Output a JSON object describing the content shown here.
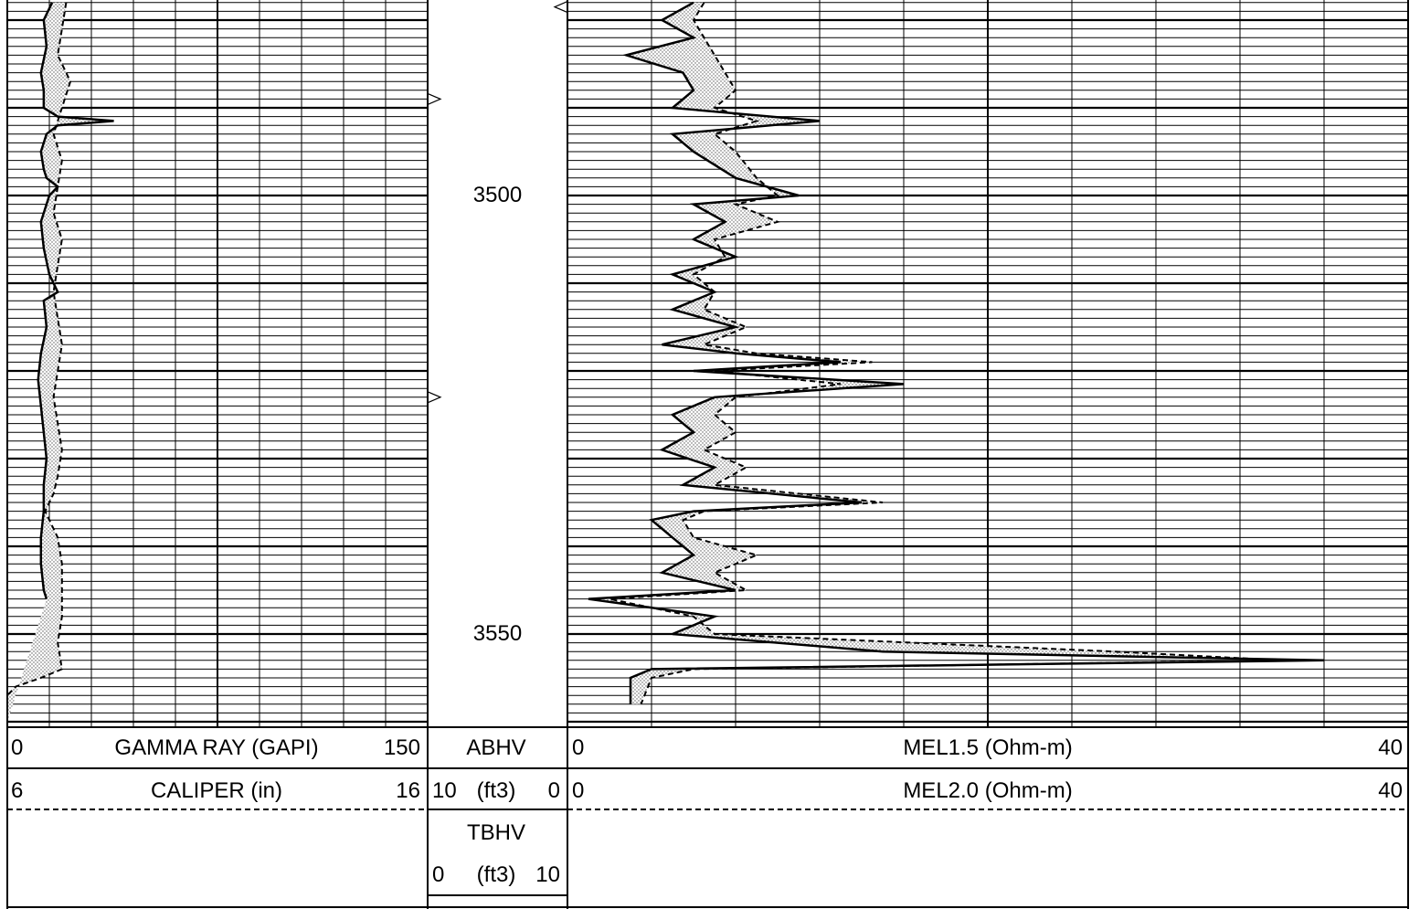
{
  "chart_data": {
    "type": "line",
    "title": "",
    "depth_axis": {
      "range": [
        3478,
        3562
      ],
      "labels": [
        "3500",
        "3550"
      ],
      "label_values": [
        3500,
        3550
      ]
    },
    "tracks": [
      {
        "name": "track1",
        "curves": [
          {
            "name": "GAMMA RAY",
            "unit": "(GAPI)",
            "min": "0",
            "max": "150",
            "min_value": 0,
            "max_value": 150,
            "style": "solid",
            "points": [
              [
                3478,
                16
              ],
              [
                3480,
                13
              ],
              [
                3483,
                14
              ],
              [
                3486,
                12
              ],
              [
                3488,
                13
              ],
              [
                3490,
                13
              ],
              [
                3491,
                18
              ],
              [
                3491.5,
                38
              ],
              [
                3492,
                18
              ],
              [
                3493,
                14
              ],
              [
                3495,
                12
              ],
              [
                3497,
                13
              ],
              [
                3498,
                14
              ],
              [
                3499,
                18
              ],
              [
                3500,
                15
              ],
              [
                3503,
                12
              ],
              [
                3506,
                13
              ],
              [
                3509,
                15
              ],
              [
                3511,
                18
              ],
              [
                3512,
                13
              ],
              [
                3515,
                14
              ],
              [
                3518,
                12
              ],
              [
                3521,
                11
              ],
              [
                3524,
                12
              ],
              [
                3527,
                13
              ],
              [
                3530,
                14
              ],
              [
                3533,
                13
              ],
              [
                3536,
                13
              ],
              [
                3539,
                12
              ],
              [
                3542,
                12
              ],
              [
                3545,
                13
              ],
              [
                3546,
                14
              ]
            ]
          },
          {
            "name": "CALIPER",
            "unit": "(in)",
            "min": "6",
            "max": "16",
            "min_value": 6,
            "max_value": 16,
            "style": "dashed",
            "points": [
              [
                3478,
                7.4
              ],
              [
                3481,
                7.3
              ],
              [
                3484,
                7.2
              ],
              [
                3487,
                7.5
              ],
              [
                3490,
                7.3
              ],
              [
                3493,
                7.1
              ],
              [
                3496,
                7.3
              ],
              [
                3499,
                7.2
              ],
              [
                3502,
                7.1
              ],
              [
                3505,
                7.3
              ],
              [
                3508,
                7.2
              ],
              [
                3511,
                7.1
              ],
              [
                3514,
                7.2
              ],
              [
                3517,
                7.3
              ],
              [
                3520,
                7.2
              ],
              [
                3523,
                7.1
              ],
              [
                3526,
                7.2
              ],
              [
                3529,
                7.3
              ],
              [
                3532,
                7.2
              ],
              [
                3534,
                7.1
              ],
              [
                3536,
                6.9
              ],
              [
                3539,
                7.2
              ],
              [
                3542,
                7.3
              ],
              [
                3545,
                7.3
              ],
              [
                3548,
                7.3
              ],
              [
                3551,
                7.2
              ],
              [
                3554,
                7.3
              ],
              [
                3555,
                6.8
              ],
              [
                3556,
                6.2
              ],
              [
                3557,
                6.0
              ],
              [
                3560,
                6.0
              ]
            ]
          }
        ],
        "shading": "between curves"
      },
      {
        "name": "track2",
        "curves": [
          {
            "name": "ABHV",
            "unit": "",
            "min": "",
            "max": "",
            "style": "solid"
          },
          {
            "name": "",
            "unit": "(ft3)",
            "min": "10",
            "max": "0",
            "style": "solid"
          },
          {
            "name": "TBHV",
            "unit": "",
            "min": "",
            "max": "",
            "style": "solid"
          },
          {
            "name": "",
            "unit": "(ft3)",
            "min": "0",
            "max": "10",
            "style": "solid"
          }
        ],
        "tick_marks": [
          {
            "depth": 3478.5,
            "side": "right"
          },
          {
            "depth": 3489,
            "side": "left"
          },
          {
            "depth": 3523,
            "side": "left"
          }
        ]
      },
      {
        "name": "track3",
        "curves": [
          {
            "name": "MEL1.5",
            "unit": "(Ohm-m)",
            "min": "0",
            "max": "40",
            "min_value": 0,
            "max_value": 40,
            "style": "solid",
            "points": [
              [
                3478,
                6
              ],
              [
                3480,
                4.5
              ],
              [
                3482,
                6
              ],
              [
                3484,
                2.8
              ],
              [
                3486,
                5.5
              ],
              [
                3488,
                6
              ],
              [
                3490,
                5
              ],
              [
                3491.5,
                12
              ],
              [
                3493,
                5
              ],
              [
                3495,
                6
              ],
              [
                3498,
                8
              ],
              [
                3500,
                11
              ],
              [
                3501,
                6
              ],
              [
                3503,
                7.5
              ],
              [
                3505,
                6
              ],
              [
                3507,
                8
              ],
              [
                3509,
                5
              ],
              [
                3511,
                7
              ],
              [
                3513,
                5
              ],
              [
                3515,
                8
              ],
              [
                3517,
                4.5
              ],
              [
                3518,
                8
              ],
              [
                3519,
                13
              ],
              [
                3520,
                6
              ],
              [
                3521.5,
                16
              ],
              [
                3523,
                7
              ],
              [
                3525,
                5
              ],
              [
                3527,
                6
              ],
              [
                3529,
                4.5
              ],
              [
                3531,
                7
              ],
              [
                3533,
                5.5
              ],
              [
                3535,
                14
              ],
              [
                3536,
                6
              ],
              [
                3537,
                4
              ],
              [
                3539,
                5
              ],
              [
                3541,
                6
              ],
              [
                3543,
                4.5
              ],
              [
                3545,
                8
              ],
              [
                3546,
                1
              ],
              [
                3548,
                7
              ],
              [
                3550,
                5
              ],
              [
                3552,
                15
              ],
              [
                3553,
                36
              ],
              [
                3554,
                4
              ],
              [
                3555,
                3
              ],
              [
                3558,
                3
              ]
            ]
          },
          {
            "name": "MEL2.0",
            "unit": "(Ohm-m)",
            "min": "0",
            "max": "40",
            "min_value": 0,
            "max_value": 40,
            "style": "dashed",
            "points": [
              [
                3478,
                6.5
              ],
              [
                3480,
                6
              ],
              [
                3482,
                6.5
              ],
              [
                3484,
                7
              ],
              [
                3486,
                7.5
              ],
              [
                3488,
                8
              ],
              [
                3490,
                7
              ],
              [
                3491.5,
                9
              ],
              [
                3493,
                7
              ],
              [
                3495,
                8
              ],
              [
                3498,
                9
              ],
              [
                3500,
                10
              ],
              [
                3501,
                8
              ],
              [
                3503,
                10
              ],
              [
                3505,
                7
              ],
              [
                3507,
                7.5
              ],
              [
                3509,
                6
              ],
              [
                3511,
                7
              ],
              [
                3513,
                6.5
              ],
              [
                3515,
                8.5
              ],
              [
                3517,
                6.5
              ],
              [
                3518,
                9
              ],
              [
                3519,
                14.5
              ],
              [
                3520,
                7
              ],
              [
                3521.5,
                13
              ],
              [
                3523,
                8
              ],
              [
                3525,
                7
              ],
              [
                3527,
                8
              ],
              [
                3529,
                6.5
              ],
              [
                3531,
                8.5
              ],
              [
                3533,
                7
              ],
              [
                3535,
                15
              ],
              [
                3536,
                6.5
              ],
              [
                3537,
                5.5
              ],
              [
                3539,
                6
              ],
              [
                3541,
                9
              ],
              [
                3543,
                7
              ],
              [
                3545,
                8.5
              ],
              [
                3546,
                2
              ],
              [
                3548,
                6
              ],
              [
                3550,
                7
              ],
              [
                3552,
                26
              ],
              [
                3553,
                34
              ],
              [
                3554,
                6
              ],
              [
                3555,
                4
              ],
              [
                3558,
                3.5
              ]
            ]
          }
        ],
        "shading": "between curves"
      }
    ],
    "grid": true
  }
}
